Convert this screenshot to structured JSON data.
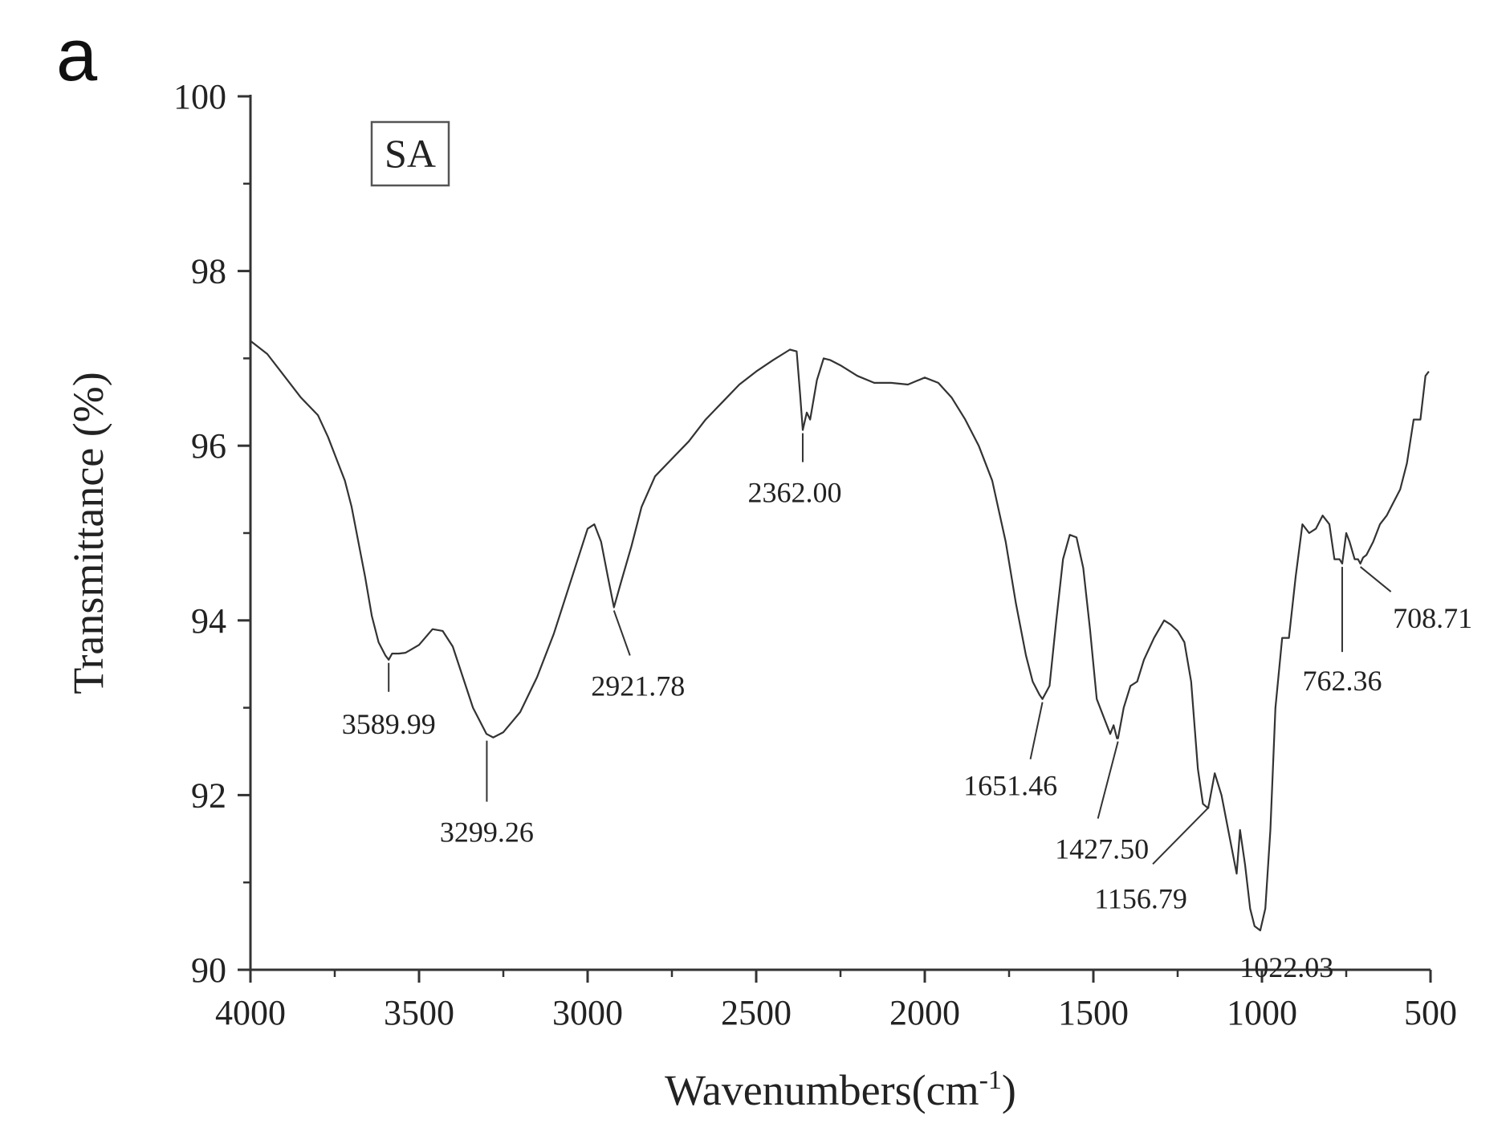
{
  "panel_label": "a",
  "chart_data": {
    "type": "line",
    "xlabel": "Wavenumbers(cm",
    "xlabel_sup": "-1",
    "xlabel_end": ")",
    "ylabel": "Transmittance (%)",
    "xlim": [
      4000,
      500
    ],
    "ylim": [
      90,
      100
    ],
    "x_reversed": true,
    "x_ticks": [
      4000,
      3500,
      3000,
      2500,
      2000,
      1500,
      1000,
      500
    ],
    "y_ticks": [
      90,
      92,
      94,
      96,
      98,
      100
    ],
    "grid": false,
    "legend": {
      "text": "SA",
      "placement": "top-left"
    },
    "series": [
      {
        "name": "SA",
        "color": "#333333",
        "x": [
          4000,
          3950,
          3900,
          3850,
          3800,
          3770,
          3740,
          3720,
          3700,
          3680,
          3660,
          3640,
          3620,
          3600,
          3590,
          3580,
          3560,
          3540,
          3500,
          3460,
          3430,
          3400,
          3370,
          3340,
          3300,
          3280,
          3250,
          3200,
          3150,
          3100,
          3050,
          3000,
          2980,
          2960,
          2940,
          2922,
          2900,
          2870,
          2840,
          2800,
          2750,
          2700,
          2650,
          2600,
          2550,
          2500,
          2450,
          2400,
          2380,
          2370,
          2362,
          2350,
          2340,
          2320,
          2300,
          2280,
          2250,
          2200,
          2150,
          2100,
          2050,
          2000,
          1960,
          1920,
          1880,
          1840,
          1800,
          1760,
          1730,
          1700,
          1680,
          1660,
          1651,
          1630,
          1610,
          1590,
          1570,
          1550,
          1530,
          1510,
          1490,
          1470,
          1450,
          1440,
          1430,
          1427,
          1410,
          1390,
          1370,
          1350,
          1320,
          1290,
          1270,
          1250,
          1230,
          1210,
          1190,
          1175,
          1160,
          1157,
          1140,
          1120,
          1100,
          1085,
          1075,
          1065,
          1050,
          1035,
          1022,
          1005,
          990,
          975,
          960,
          940,
          920,
          900,
          880,
          860,
          840,
          820,
          800,
          785,
          770,
          762,
          750,
          740,
          725,
          715,
          708,
          700,
          690,
          670,
          650,
          630,
          610,
          590,
          570,
          550,
          530,
          515,
          505
        ],
        "y": [
          97.2,
          97.05,
          96.8,
          96.55,
          96.35,
          96.1,
          95.8,
          95.6,
          95.3,
          94.9,
          94.5,
          94.05,
          93.75,
          93.6,
          93.55,
          93.62,
          93.62,
          93.63,
          93.72,
          93.9,
          93.88,
          93.7,
          93.35,
          93.0,
          92.7,
          92.66,
          92.72,
          92.95,
          93.35,
          93.85,
          94.45,
          95.05,
          95.1,
          94.9,
          94.5,
          94.15,
          94.45,
          94.85,
          95.3,
          95.65,
          95.85,
          96.05,
          96.3,
          96.5,
          96.7,
          96.85,
          96.98,
          97.1,
          97.08,
          96.6,
          96.18,
          96.38,
          96.3,
          96.75,
          97.0,
          96.98,
          96.92,
          96.8,
          96.72,
          96.72,
          96.7,
          96.78,
          96.72,
          96.55,
          96.3,
          96.0,
          95.6,
          94.9,
          94.2,
          93.6,
          93.3,
          93.15,
          93.1,
          93.25,
          94.0,
          94.7,
          94.98,
          94.95,
          94.6,
          93.9,
          93.1,
          92.9,
          92.7,
          92.8,
          92.65,
          92.65,
          93.0,
          93.25,
          93.3,
          93.55,
          93.8,
          94.0,
          93.95,
          93.88,
          93.75,
          93.3,
          92.3,
          91.9,
          91.85,
          91.9,
          92.25,
          92.0,
          91.6,
          91.3,
          91.1,
          91.6,
          91.2,
          90.7,
          90.5,
          90.45,
          90.7,
          91.6,
          93.0,
          93.8,
          93.8,
          94.5,
          95.1,
          95.0,
          95.05,
          95.2,
          95.1,
          94.7,
          94.7,
          94.65,
          95.0,
          94.9,
          94.7,
          94.7,
          94.65,
          94.72,
          94.75,
          94.9,
          95.1,
          95.2,
          95.35,
          95.5,
          95.8,
          96.3,
          96.3,
          96.8,
          96.85
        ]
      }
    ],
    "peak_labels": [
      {
        "label": "3589.99",
        "x": 3590,
        "y": 93.55
      },
      {
        "label": "3299.26",
        "x": 3299,
        "y": 92.66
      },
      {
        "label": "2921.78",
        "x": 2922,
        "y": 94.15
      },
      {
        "label": "2362.00",
        "x": 2362,
        "y": 96.18
      },
      {
        "label": "1651.46",
        "x": 1651,
        "y": 93.1
      },
      {
        "label": "1427.50",
        "x": 1427,
        "y": 92.65
      },
      {
        "label": "1156.79",
        "x": 1157,
        "y": 91.9
      },
      {
        "label": "1022.03",
        "x": 1022,
        "y": 90.45
      },
      {
        "label": "762.36",
        "x": 762,
        "y": 94.65
      },
      {
        "label": "708.71",
        "x": 708,
        "y": 94.65
      }
    ]
  }
}
